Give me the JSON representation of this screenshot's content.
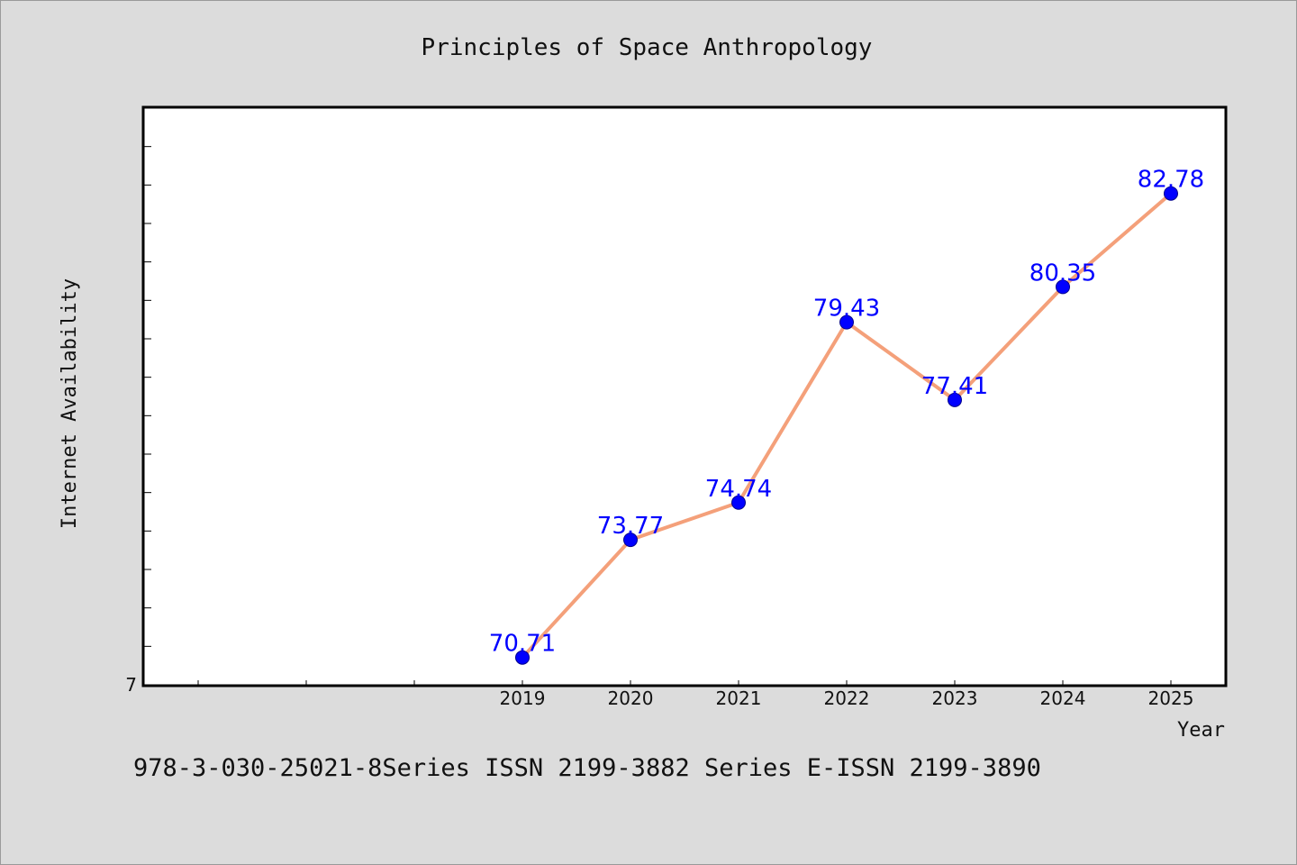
{
  "chart_data": {
    "type": "line",
    "title": "Principles of Space Anthropology",
    "xlabel": "Year",
    "ylabel": "Internet Availability",
    "categories": [
      "2019",
      "2020",
      "2021",
      "2022",
      "2023",
      "2024",
      "2025"
    ],
    "values": [
      70.71,
      73.77,
      74.74,
      79.43,
      77.41,
      80.35,
      82.78
    ],
    "y_tick_labels": [
      "7"
    ],
    "xlim": [
      2015.5,
      2025.5
    ],
    "ylim": [
      70.0,
      85.0
    ],
    "grid": false,
    "line_color": "#f4a07a",
    "marker_color": "#0000ff",
    "label_color": "#0000ff",
    "background": "#dcdcdc",
    "plot_background": "#ffffff"
  },
  "footer": {
    "text": "978-3-030-25021-8Series ISSN 2199-3882 Series E-ISSN 2199-3890"
  }
}
